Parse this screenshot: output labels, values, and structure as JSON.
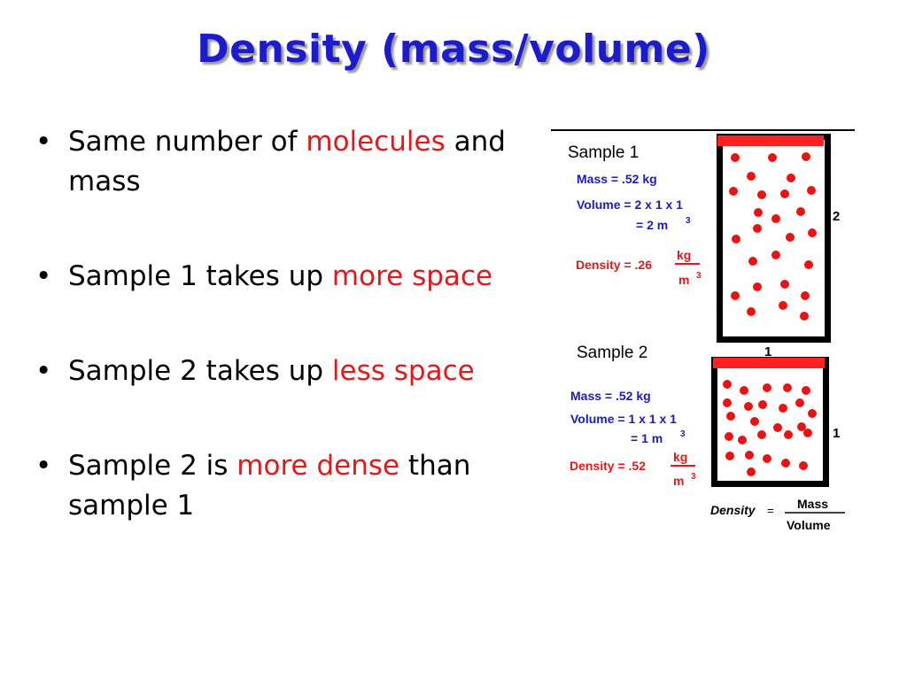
{
  "slide": {
    "title": "Density (mass/volume)",
    "bullets": [
      {
        "parts": [
          {
            "text": "Same number of ",
            "color": "black"
          },
          {
            "text": "molecules",
            "color": "red"
          },
          {
            "text": " and mass",
            "color": "black"
          }
        ]
      },
      {
        "parts": [
          {
            "text": "Sample 1 takes up ",
            "color": "black"
          },
          {
            "text": "more space",
            "color": "red"
          }
        ]
      },
      {
        "parts": [
          {
            "text": "Sample 2 takes up ",
            "color": "black"
          },
          {
            "text": "less space",
            "color": "red"
          }
        ]
      },
      {
        "parts": [
          {
            "text": "Sample 2 is ",
            "color": "black"
          },
          {
            "text": "more dense",
            "color": "red"
          },
          {
            "text": " than sample 1",
            "color": "black"
          }
        ]
      }
    ]
  },
  "figure": {
    "sample1": {
      "label": "Sample 1",
      "mass": "Mass =  .52  kg",
      "volume": "Volume = 2 x 1 x 1",
      "volume_result": "= 2  m",
      "volume_exp": "3",
      "density": "Density = .26",
      "unit_num": "kg",
      "unit_den": "m",
      "unit_exp": "3",
      "height_dim": "2",
      "width_dim": "1",
      "molecule_count": 26
    },
    "sample2": {
      "label": "Sample 2",
      "mass": "Mass =  .52  kg",
      "volume": "Volume = 1 x 1 x 1",
      "volume_result": "= 1  m",
      "volume_exp": "3",
      "density": "Density = .52",
      "unit_num": "kg",
      "unit_den": "m",
      "unit_exp": "3",
      "height_dim": "1",
      "molecule_count": 26
    },
    "formula": {
      "lhs": "Density",
      "eq": "=",
      "numerator": "Mass",
      "denominator": "Volume"
    }
  },
  "colors": {
    "title": "#1c1ccc",
    "accent_red": "#e41818",
    "formula_blue": "#1a1acc",
    "container": "#000000",
    "lid_red": "#ff2020",
    "molecule_red": "#ee1111"
  }
}
